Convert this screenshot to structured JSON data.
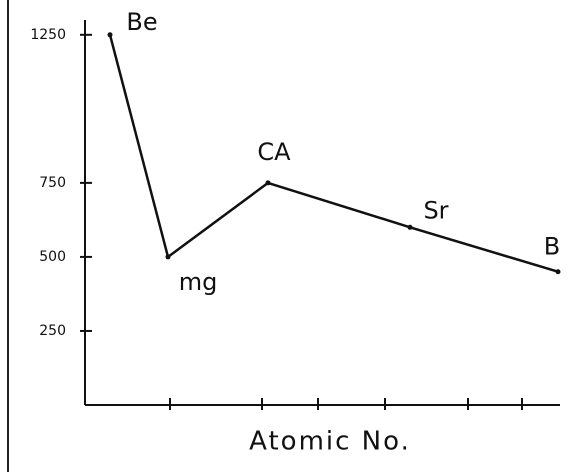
{
  "chart_data": {
    "type": "line",
    "x_label": "Atomic No.",
    "categories": [
      "Be",
      "mg",
      "CA",
      "Sr",
      "B"
    ],
    "values": [
      1250,
      500,
      750,
      600,
      450
    ],
    "color": "#111111",
    "ylim": [
      0,
      1300
    ],
    "yticks": [
      250,
      500,
      750,
      1250
    ]
  }
}
